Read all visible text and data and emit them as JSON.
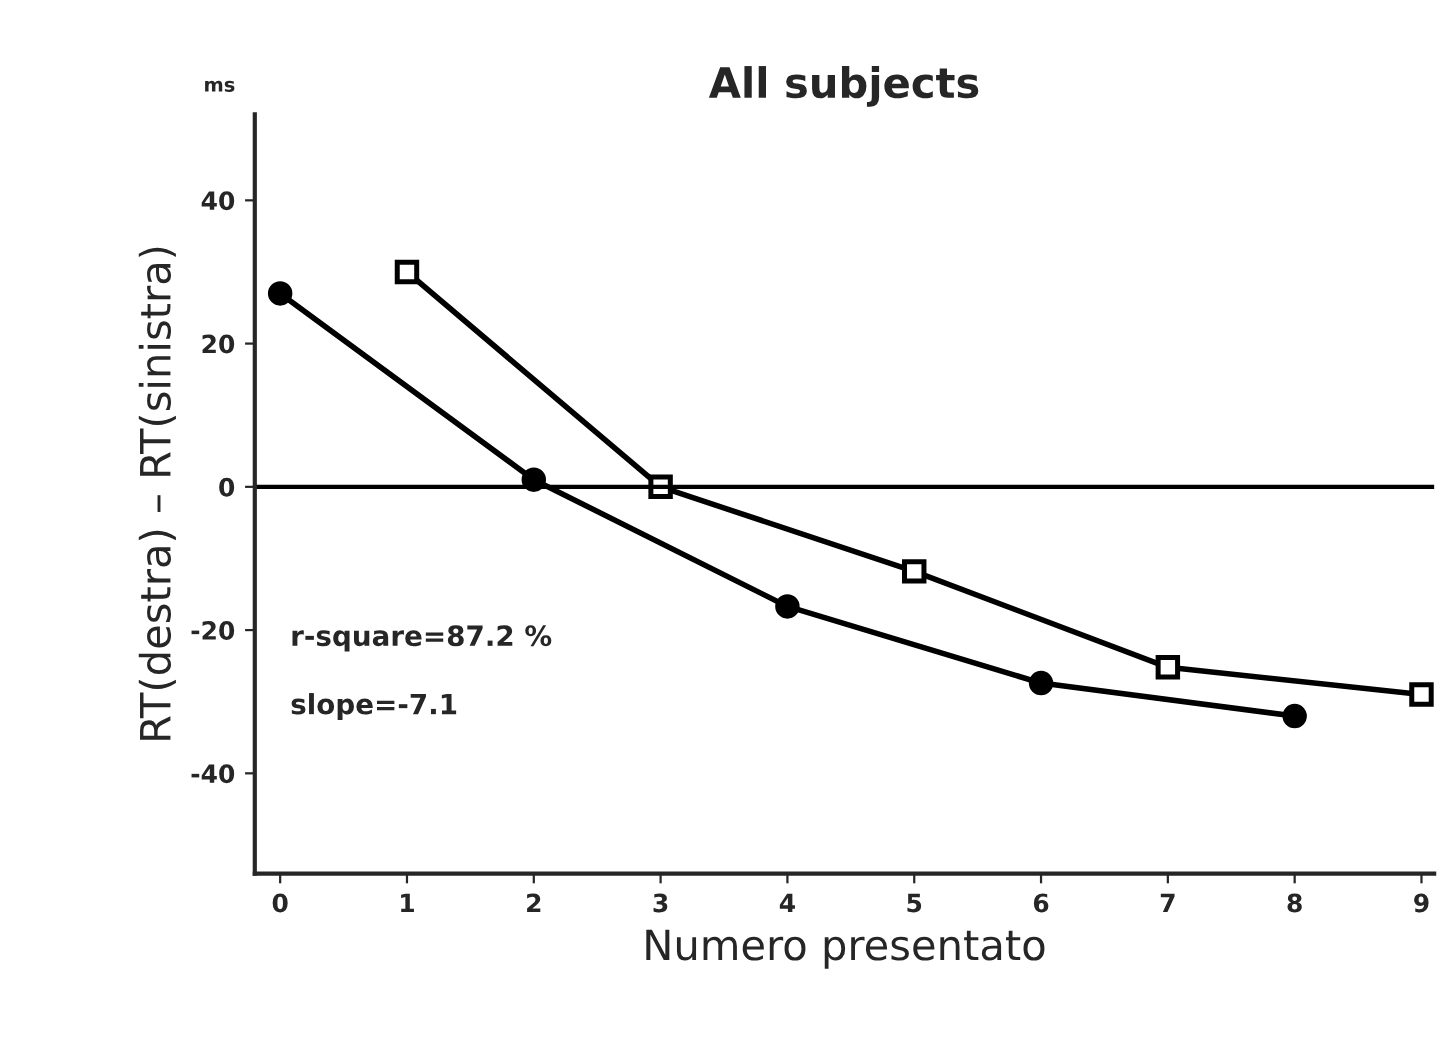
{
  "chart_data": {
    "type": "line",
    "title": "All subjects",
    "xlabel": "Numero presentato",
    "ylabel": "RT(destra) – RT(sinistra)",
    "annotations": [
      "ms",
      "r-square=87.2 %",
      "slope=-7.1"
    ],
    "series": [
      {
        "color": "#000000",
        "marker": "circle",
        "x": [
          0,
          2,
          4,
          6,
          8
        ],
        "values": [
          27,
          1,
          -16.7,
          -27.4,
          -32
        ]
      },
      {
        "color": "#000000",
        "marker": "square",
        "x": [
          1,
          3,
          5,
          7,
          9
        ],
        "values": [
          30,
          0,
          -11.8,
          -25.2,
          -29
        ]
      }
    ],
    "xlim": [
      -0.2,
      9.1
    ],
    "xticks": [
      0,
      1,
      2,
      3,
      4,
      5,
      6,
      7,
      8,
      9
    ],
    "ylim": [
      -54,
      52
    ],
    "yticks": [
      -40,
      -20,
      0,
      20,
      40
    ],
    "ref_lines": [
      {
        "axis": "y",
        "value": 0,
        "color": "#000000"
      }
    ],
    "grid": false,
    "legend": false
  }
}
